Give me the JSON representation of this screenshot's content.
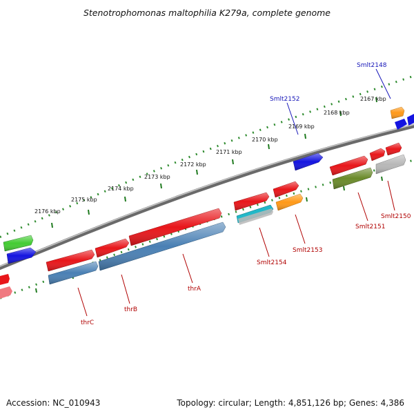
{
  "title": "Stenotrophomonas maltophilia K279a, complete genome",
  "accession_text": "Accession: NC_010943",
  "topology_text": "Topology: circular; Length: 4,851,126 bp; Genes: 4,386",
  "colors": {
    "backbone": "#7a7a7a",
    "scale_ticks": "#2e8b2e",
    "label_blue": "#1515b8",
    "label_red": "#b00000",
    "red": "#e8161a",
    "blue": "#1414e0",
    "steelblue": "#4a80b4",
    "green": "#44cc33",
    "orange": "#ff9918",
    "cyan": "#22b8c8",
    "grey": "#b8b8b8",
    "olive": "#6a8a2a",
    "pink": "#f07a80"
  },
  "scale_ticks": [
    "2167 kbp",
    "2168 kbp",
    "2169 kbp",
    "2170 kbp",
    "2171 kbp",
    "2172 kbp",
    "2173 kbp",
    "2174 kbp",
    "2175 kbp",
    "2176 kbp"
  ],
  "gene_labels": {
    "Smlt2148": "Smlt2148",
    "Smlt2152": "Smlt2152",
    "thrC": "thrC",
    "thrB": "thrB",
    "thrA": "thrA",
    "Smlt2154": "Smlt2154",
    "Smlt2153": "Smlt2153",
    "Smlt2151": "Smlt2151",
    "Smlt2150": "Smlt2150"
  }
}
